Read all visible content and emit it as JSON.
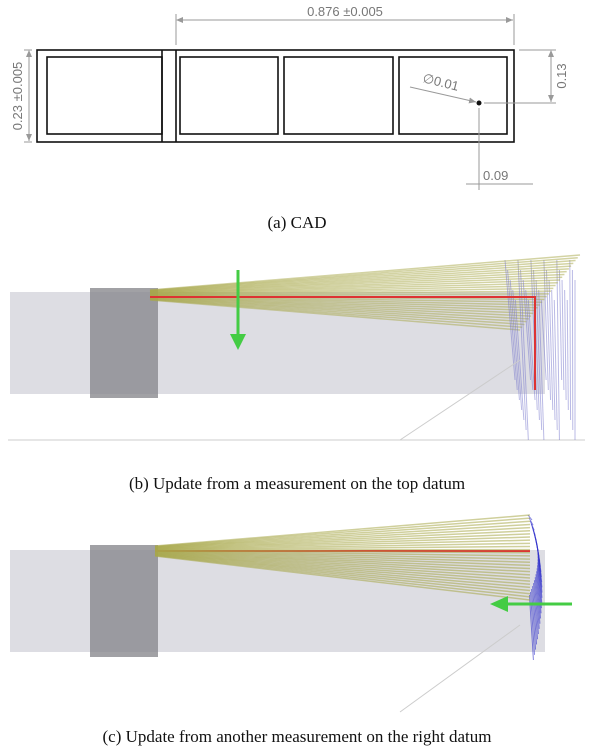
{
  "cad": {
    "dimensions": {
      "length": "0.876 ±0.005",
      "height": "0.23 ±0.005",
      "hole_diameter": "∅0.01",
      "hole_y": "0.13",
      "hole_x": "0.09"
    },
    "caption": "(a) CAD"
  },
  "panels": [
    {
      "caption": "(b) Update from a measurement on the top datum"
    },
    {
      "caption": "(c) Update from another measurement on the right datum"
    }
  ]
}
